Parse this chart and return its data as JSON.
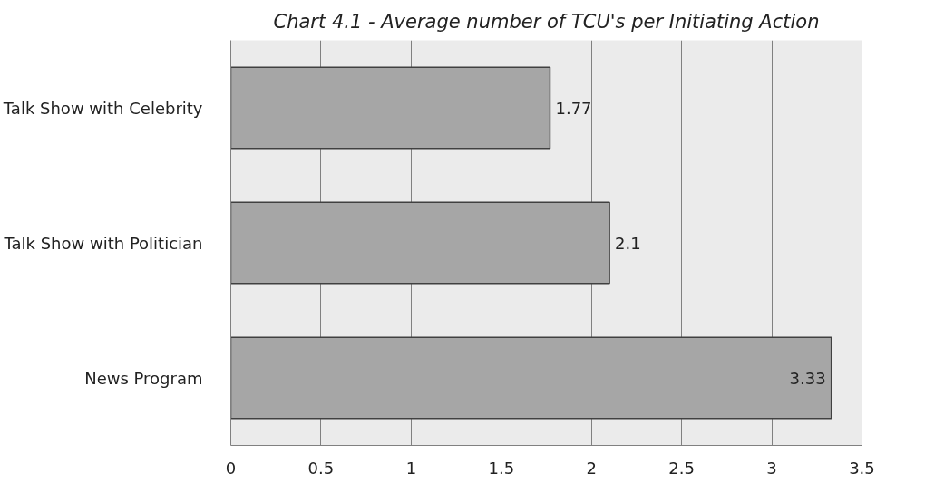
{
  "chart_data": {
    "type": "bar",
    "orientation": "horizontal",
    "title": "Chart 4.1 - Average number of TCU's per Initiating Action",
    "categories": [
      "Talk Show with Celebrity",
      "Talk Show with Politician",
      "News Program"
    ],
    "values": [
      1.77,
      2.1,
      3.33
    ],
    "color": "#a6a6a6",
    "data_labels": true,
    "xlim": [
      0,
      3.5
    ],
    "xticks": [
      0,
      0.5,
      1,
      1.5,
      2,
      2.5,
      3,
      3.5
    ],
    "grid": "x"
  }
}
